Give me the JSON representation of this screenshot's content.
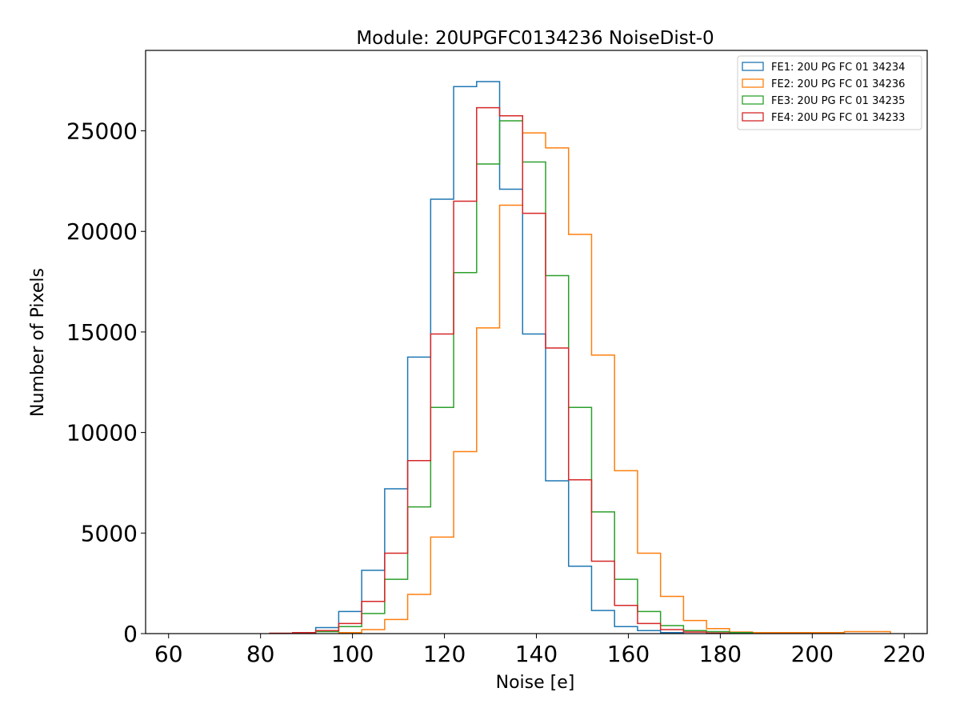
{
  "chart_data": {
    "type": "histogram",
    "title": "Module: 20UPGFC0134236 NoiseDist-0",
    "xlabel": "Noise [e]",
    "ylabel": "Number of Pixels",
    "xlim": [
      55,
      225
    ],
    "ylim": [
      0,
      29000
    ],
    "xticks": [
      60,
      80,
      100,
      120,
      140,
      160,
      180,
      200,
      220
    ],
    "yticks": [
      0,
      5000,
      10000,
      15000,
      20000,
      25000
    ],
    "bin_width": 5,
    "legend_position": "top-right",
    "grid": false,
    "series": [
      {
        "name": "FE1: 20U PG FC 01 34234",
        "color": "#1f77b4",
        "bin_starts": [
          92,
          97,
          102,
          107,
          112,
          117,
          122,
          127,
          132,
          137,
          142,
          147,
          152,
          157,
          162,
          167
        ],
        "values": [
          300,
          1100,
          3150,
          7200,
          13750,
          21600,
          27200,
          27450,
          22100,
          14900,
          7600,
          3350,
          1150,
          350,
          150,
          50
        ]
      },
      {
        "name": "FE2: 20U PG FC 01 34236",
        "color": "#ff7f0e",
        "bin_starts": [
          97,
          102,
          107,
          112,
          117,
          122,
          127,
          132,
          137,
          142,
          147,
          152,
          157,
          162,
          167,
          172,
          177,
          182,
          187,
          192,
          197,
          202,
          207,
          212
        ],
        "values": [
          50,
          200,
          700,
          1950,
          4800,
          9050,
          15200,
          21300,
          24900,
          24150,
          19850,
          13850,
          8100,
          4000,
          1850,
          650,
          250,
          80,
          50,
          50,
          50,
          50,
          100,
          100
        ]
      },
      {
        "name": "FE3: 20U PG FC 01 34235",
        "color": "#2ca02c",
        "bin_starts": [
          87,
          92,
          97,
          102,
          107,
          112,
          117,
          122,
          127,
          132,
          137,
          142,
          147,
          152,
          157,
          162,
          167,
          172,
          177,
          182
        ],
        "values": [
          50,
          100,
          350,
          1000,
          2700,
          6300,
          11250,
          17950,
          23350,
          25500,
          23450,
          17800,
          11250,
          6050,
          2700,
          1100,
          400,
          150,
          100,
          50
        ]
      },
      {
        "name": "FE4: 20U PG FC 01 34233",
        "color": "#d62728",
        "bin_starts": [
          82,
          87,
          92,
          97,
          102,
          107,
          112,
          117,
          122,
          127,
          132,
          137,
          142,
          147,
          152,
          157,
          162,
          167,
          172,
          177
        ],
        "values": [
          20,
          50,
          150,
          500,
          1600,
          4000,
          8600,
          14900,
          21500,
          26150,
          25750,
          20900,
          14200,
          7650,
          3600,
          1400,
          500,
          200,
          80,
          30
        ]
      }
    ]
  }
}
